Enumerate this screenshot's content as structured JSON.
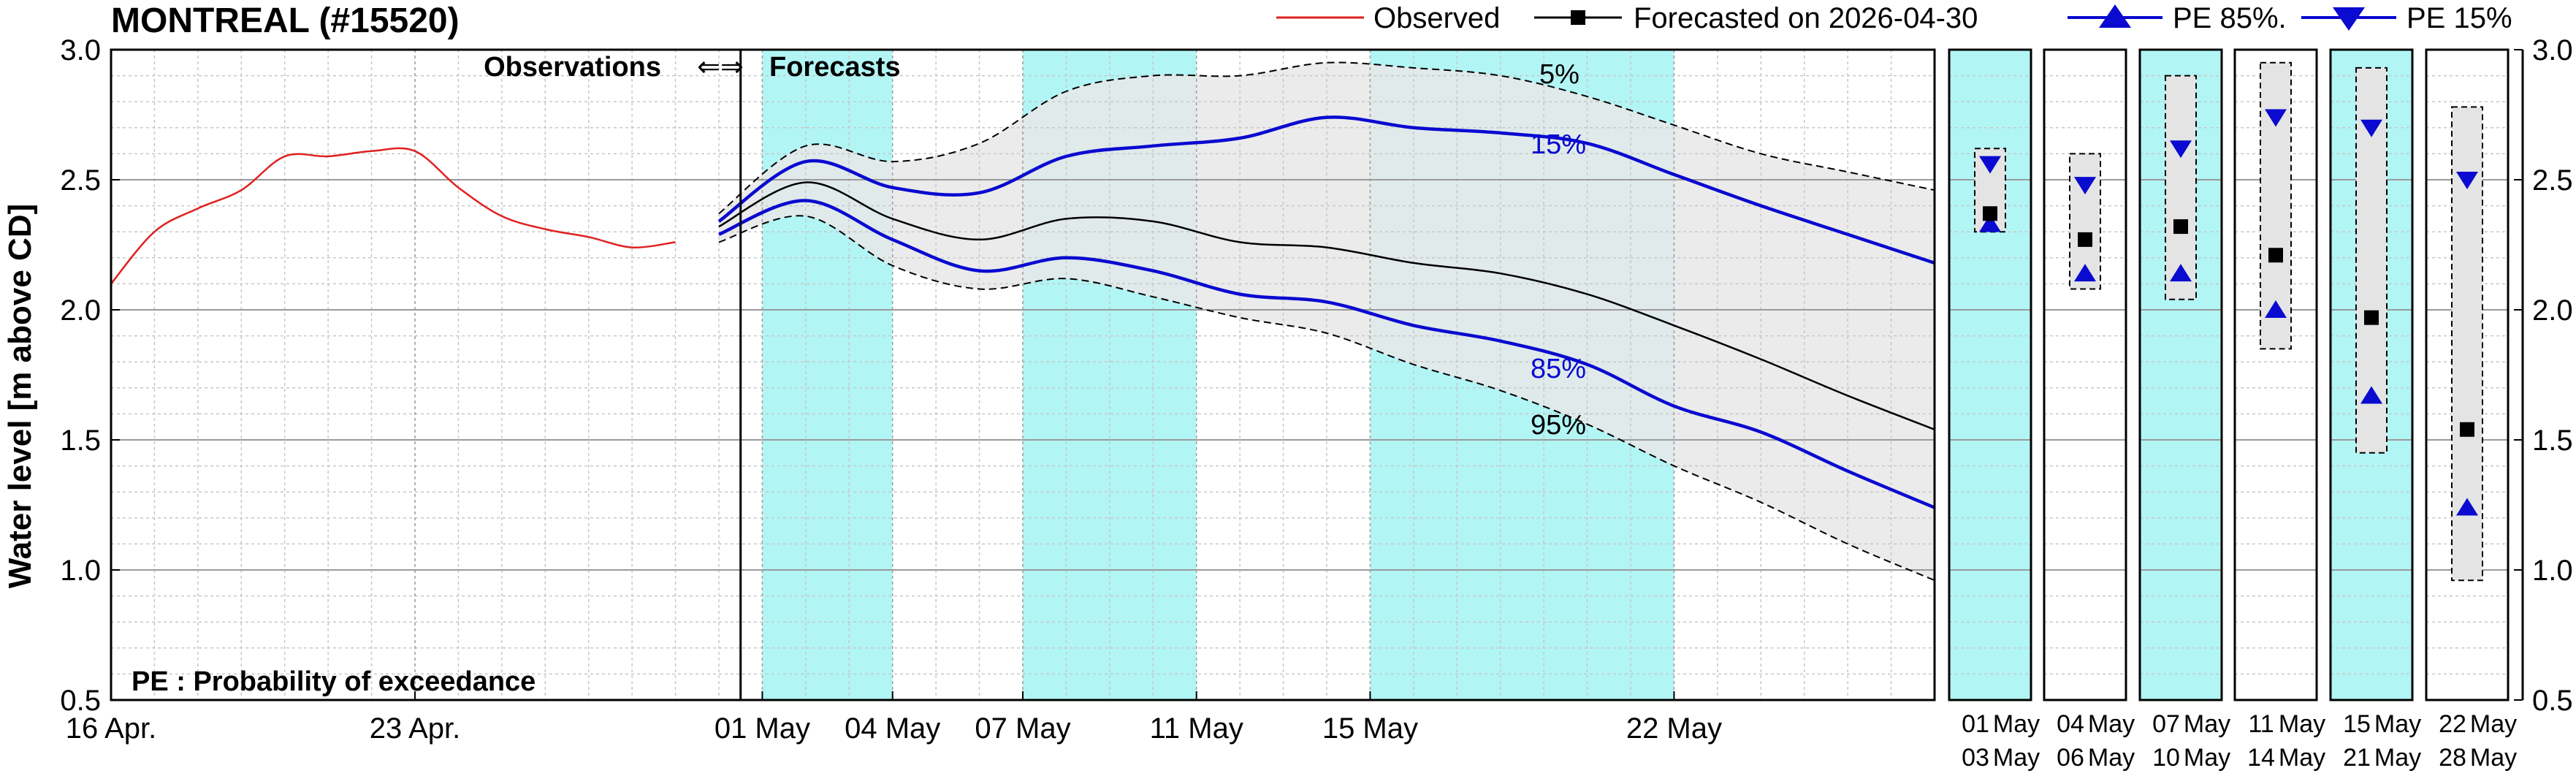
{
  "title": "MONTREAL (#15520)",
  "legend": {
    "observed": "Observed",
    "forecasted": "Forecasted on 2026-04-30",
    "pe85": "PE 85%.",
    "pe15": "PE 15%"
  },
  "annotations": {
    "observations": "Observations",
    "forecasts": "Forecasts",
    "arrows": "⇐⇒",
    "pe_note": "PE : Probability of exceedance",
    "band_5": "5%",
    "band_15": "15%",
    "band_85": "85%",
    "band_95": "95%"
  },
  "colors": {
    "observed": "#e02020",
    "forecast": "#000000",
    "pe": "#0a0ad0",
    "envelope": "#e8e8e8",
    "period_shade": "#b2f5f5"
  },
  "chart_data": {
    "type": "line",
    "ylabel": "Water level [m above CD]",
    "ylim": [
      0.5,
      3.0
    ],
    "yticks": [
      "0.5",
      "1.0",
      "1.5",
      "2.0",
      "2.5",
      "3.0"
    ],
    "xlim": [
      "2026-04-16",
      "2026-05-28"
    ],
    "xticks": [
      {
        "date": "2026-04-16",
        "label": "16 Apr."
      },
      {
        "date": "2026-04-23",
        "label": "23 Apr."
      },
      {
        "date": "2026-05-01",
        "label": "01 May"
      },
      {
        "date": "2026-05-04",
        "label": "04 May"
      },
      {
        "date": "2026-05-07",
        "label": "07 May"
      },
      {
        "date": "2026-05-11",
        "label": "11 May"
      },
      {
        "date": "2026-05-15",
        "label": "15 May"
      },
      {
        "date": "2026-05-22",
        "label": "22 May"
      }
    ],
    "forecast_start": "2026-04-30",
    "shaded_periods": [
      [
        "2026-05-01",
        "2026-05-04"
      ],
      [
        "2026-05-07",
        "2026-05-11"
      ],
      [
        "2026-05-15",
        "2026-05-22"
      ]
    ],
    "series": [
      {
        "name": "Observed",
        "x": [
          "2026-04-16",
          "2026-04-17",
          "2026-04-18",
          "2026-04-19",
          "2026-04-20",
          "2026-04-21",
          "2026-04-22",
          "2026-04-23",
          "2026-04-24",
          "2026-04-25",
          "2026-04-26",
          "2026-04-27",
          "2026-04-28",
          "2026-04-29"
        ],
        "y": [
          2.1,
          2.3,
          2.39,
          2.46,
          2.59,
          2.59,
          2.61,
          2.61,
          2.47,
          2.36,
          2.31,
          2.28,
          2.24,
          2.26
        ]
      },
      {
        "name": "Forecasted on 2026-04-30",
        "x": [
          "2026-04-30",
          "2026-05-02",
          "2026-05-04",
          "2026-05-06",
          "2026-05-08",
          "2026-05-10",
          "2026-05-12",
          "2026-05-14",
          "2026-05-16",
          "2026-05-18",
          "2026-05-20",
          "2026-05-22",
          "2026-05-24",
          "2026-05-26",
          "2026-05-28"
        ],
        "y": [
          2.32,
          2.49,
          2.35,
          2.27,
          2.35,
          2.34,
          2.26,
          2.24,
          2.18,
          2.14,
          2.06,
          1.94,
          1.81,
          1.67,
          1.54
        ]
      },
      {
        "name": "PE 85%.",
        "x": [
          "2026-04-30",
          "2026-05-02",
          "2026-05-04",
          "2026-05-06",
          "2026-05-08",
          "2026-05-10",
          "2026-05-12",
          "2026-05-14",
          "2026-05-16",
          "2026-05-18",
          "2026-05-20",
          "2026-05-22",
          "2026-05-24",
          "2026-05-26",
          "2026-05-28"
        ],
        "y": [
          2.29,
          2.42,
          2.27,
          2.15,
          2.2,
          2.15,
          2.06,
          2.03,
          1.94,
          1.88,
          1.79,
          1.63,
          1.53,
          1.38,
          1.24
        ]
      },
      {
        "name": "PE 15%",
        "x": [
          "2026-04-30",
          "2026-05-02",
          "2026-05-04",
          "2026-05-06",
          "2026-05-08",
          "2026-05-10",
          "2026-05-12",
          "2026-05-14",
          "2026-05-16",
          "2026-05-18",
          "2026-05-20",
          "2026-05-22",
          "2026-05-24",
          "2026-05-26",
          "2026-05-28"
        ],
        "y": [
          2.34,
          2.57,
          2.47,
          2.45,
          2.59,
          2.63,
          2.66,
          2.74,
          2.7,
          2.68,
          2.64,
          2.52,
          2.4,
          2.29,
          2.18
        ]
      }
    ],
    "envelope_5": {
      "x": [
        "2026-04-30",
        "2026-05-02",
        "2026-05-04",
        "2026-05-06",
        "2026-05-08",
        "2026-05-10",
        "2026-05-12",
        "2026-05-14",
        "2026-05-16",
        "2026-05-18",
        "2026-05-20",
        "2026-05-22",
        "2026-05-24",
        "2026-05-26",
        "2026-05-28"
      ],
      "y": [
        2.37,
        2.63,
        2.57,
        2.64,
        2.84,
        2.9,
        2.9,
        2.95,
        2.93,
        2.9,
        2.82,
        2.71,
        2.6,
        2.53,
        2.46
      ]
    },
    "envelope_95": {
      "x": [
        "2026-04-30",
        "2026-05-02",
        "2026-05-04",
        "2026-05-06",
        "2026-05-08",
        "2026-05-10",
        "2026-05-12",
        "2026-05-14",
        "2026-05-16",
        "2026-05-18",
        "2026-05-20",
        "2026-05-22",
        "2026-05-24",
        "2026-05-26",
        "2026-05-28"
      ],
      "y": [
        2.26,
        2.36,
        2.17,
        2.08,
        2.12,
        2.05,
        1.97,
        1.91,
        1.79,
        1.69,
        1.56,
        1.4,
        1.26,
        1.1,
        0.96
      ]
    },
    "period_panels": [
      {
        "top": "01 May",
        "bottom": "03 May",
        "shaded": true,
        "forecast": 2.37,
        "pe85": 2.33,
        "pe15": 2.56,
        "range": [
          2.3,
          2.62
        ]
      },
      {
        "top": "04 May",
        "bottom": "06 May",
        "shaded": false,
        "forecast": 2.27,
        "pe85": 2.14,
        "pe15": 2.48,
        "range": [
          2.08,
          2.6
        ]
      },
      {
        "top": "07 May",
        "bottom": "10 May",
        "shaded": true,
        "forecast": 2.32,
        "pe85": 2.14,
        "pe15": 2.62,
        "range": [
          2.04,
          2.9
        ]
      },
      {
        "top": "11 May",
        "bottom": "14 May",
        "shaded": false,
        "forecast": 2.21,
        "pe85": 2.0,
        "pe15": 2.74,
        "range": [
          1.85,
          2.95
        ]
      },
      {
        "top": "15 May",
        "bottom": "21 May",
        "shaded": true,
        "forecast": 1.97,
        "pe85": 1.67,
        "pe15": 2.7,
        "range": [
          1.45,
          2.93
        ]
      },
      {
        "top": "22 May",
        "bottom": "28 May",
        "shaded": false,
        "forecast": 1.54,
        "pe85": 1.24,
        "pe15": 2.5,
        "range": [
          0.96,
          2.78
        ]
      }
    ]
  }
}
